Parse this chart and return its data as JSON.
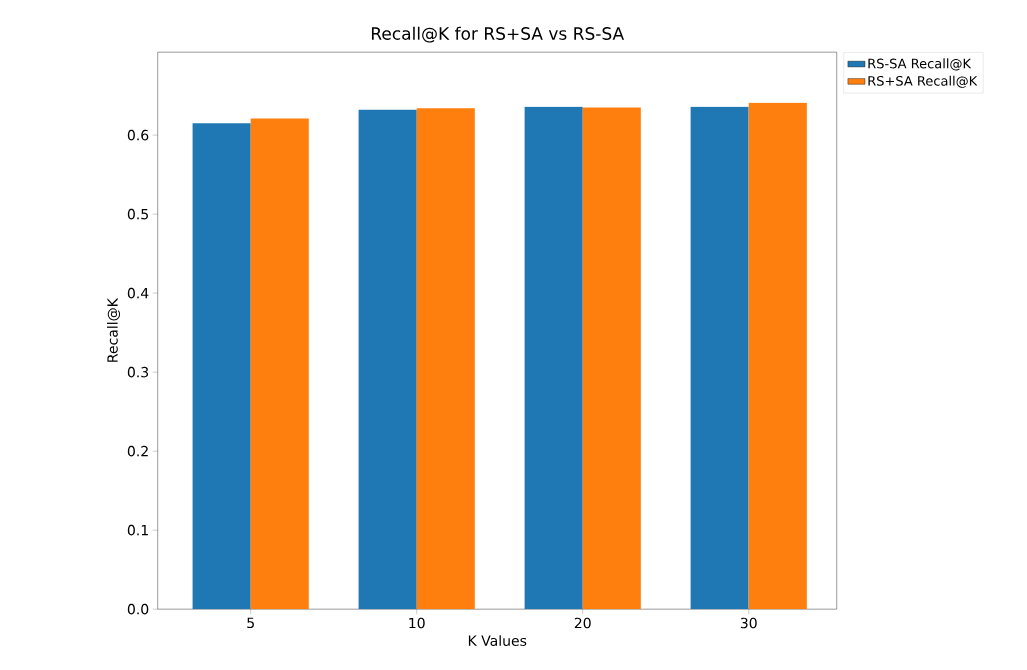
{
  "chart_data": {
    "type": "bar",
    "title": "Recall@K for RS+SA vs RS-SA",
    "xlabel": "K Values",
    "ylabel": "Recall@K",
    "categories": [
      "5",
      "10",
      "20",
      "30"
    ],
    "series": [
      {
        "name": "RS-SA Recall@K",
        "color": "#1f77b4",
        "values": [
          0.615,
          0.632,
          0.636,
          0.636
        ]
      },
      {
        "name": "RS+SA Recall@K",
        "color": "#ff7f0e",
        "values": [
          0.621,
          0.634,
          0.635,
          0.641
        ]
      }
    ],
    "ylim": [
      0,
      0.705
    ],
    "yticks": [
      {
        "value": 0,
        "label": "0.0"
      },
      0.1,
      0.2,
      0.3,
      0.4,
      0.5,
      0.6
    ],
    "legend": "top right",
    "grid": false
  }
}
